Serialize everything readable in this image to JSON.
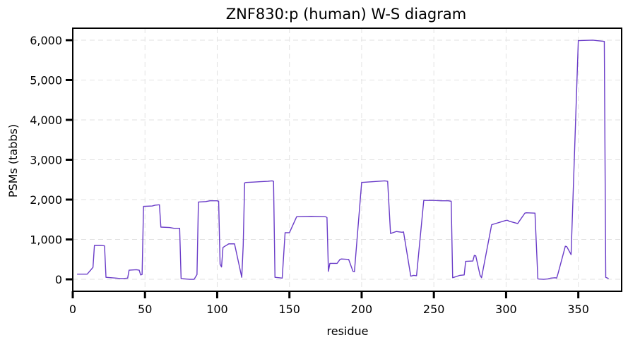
{
  "chart_data": {
    "type": "line",
    "title": "ZNF830:p (human) W-S diagram",
    "xlabel": "residue",
    "ylabel": "PSMs (tabbs)",
    "xlim": [
      0,
      380
    ],
    "ylim": [
      -300,
      6300
    ],
    "xticks": [
      0,
      50,
      100,
      150,
      200,
      250,
      300,
      350
    ],
    "xtick_labels": [
      "0",
      "50",
      "100",
      "150",
      "200",
      "250",
      "300",
      "350"
    ],
    "yticks": [
      0,
      1000,
      2000,
      3000,
      4000,
      5000,
      6000
    ],
    "ytick_labels": [
      "0",
      "1,000",
      "2,000",
      "3,000",
      "4,000",
      "5,000",
      "6,000"
    ],
    "grid": true,
    "color": "#6a3cc8",
    "series": [
      {
        "x": [
          3,
          10,
          14,
          15,
          20,
          22,
          23,
          30,
          33,
          35,
          38,
          39,
          44,
          46,
          47,
          48,
          49,
          55,
          57,
          60,
          61,
          67,
          70,
          74,
          75,
          81,
          84,
          86,
          87,
          92,
          95,
          100,
          101,
          102,
          103,
          104,
          108,
          112,
          117,
          118,
          119,
          120,
          125,
          130,
          135,
          138,
          139,
          140,
          143,
          145,
          147,
          150,
          155,
          165,
          175,
          176,
          177,
          178,
          183,
          185,
          186,
          191,
          194,
          195,
          200,
          208,
          216,
          218,
          220,
          224,
          226,
          228,
          229,
          234,
          236,
          238,
          243,
          250,
          255,
          260,
          262,
          263,
          268,
          271,
          272,
          277,
          278,
          279,
          282,
          283,
          290,
          300,
          301,
          302,
          308,
          313,
          314,
          320,
          322,
          326,
          329,
          331,
          334,
          335,
          336,
          341,
          342,
          345,
          350,
          360,
          365,
          368,
          369,
          371
        ],
        "values": [
          130,
          130,
          300,
          850,
          850,
          840,
          50,
          30,
          20,
          20,
          30,
          230,
          240,
          230,
          110,
          120,
          1830,
          1840,
          1860,
          1870,
          1310,
          1300,
          1280,
          1280,
          20,
          0,
          0,
          120,
          1940,
          1950,
          1970,
          1970,
          1960,
          380,
          310,
          800,
          890,
          890,
          50,
          850,
          2420,
          2430,
          2440,
          2450,
          2460,
          2470,
          2460,
          50,
          40,
          30,
          1170,
          1170,
          1570,
          1580,
          1570,
          1550,
          200,
          400,
          400,
          500,
          510,
          500,
          200,
          190,
          2430,
          2450,
          2470,
          2460,
          1150,
          1200,
          1190,
          1180,
          1190,
          80,
          100,
          90,
          1980,
          1980,
          1970,
          1970,
          1960,
          40,
          100,
          110,
          450,
          460,
          600,
          590,
          100,
          40,
          1370,
          1480,
          1480,
          1460,
          1400,
          1660,
          1670,
          1660,
          10,
          0,
          10,
          30,
          40,
          30,
          150,
          830,
          820,
          620,
          5990,
          6000,
          5980,
          5970,
          50,
          20
        ]
      }
    ]
  }
}
